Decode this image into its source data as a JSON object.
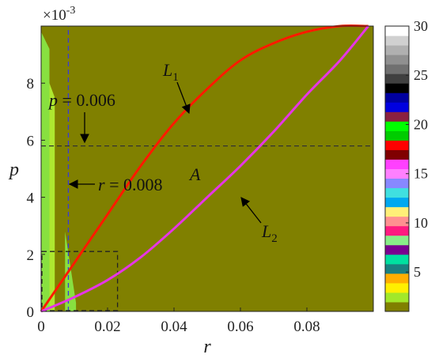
{
  "chart_data": {
    "type": "contour",
    "xlabel": "r",
    "ylabel": "p",
    "xlim": [
      0,
      0.1
    ],
    "ylim": [
      0,
      0.01
    ],
    "y_multiplier": "×10",
    "y_multiplier_exp": "-3",
    "x_ticks": [
      "0",
      "0.02",
      "0.04",
      "0.06",
      "0.08"
    ],
    "x_tick_values": [
      0,
      0.02,
      0.04,
      0.06,
      0.08
    ],
    "y_ticks": [
      "0",
      "2",
      "4",
      "6",
      "8"
    ],
    "y_tick_values": [
      0,
      0.002,
      0.004,
      0.006,
      0.008
    ],
    "background_color": "#808000",
    "series": [
      {
        "name": "L1",
        "color": "#ff1a00",
        "x": [
          0,
          0.01,
          0.02,
          0.03,
          0.04,
          0.05,
          0.06,
          0.07,
          0.08,
          0.09,
          0.0985
        ],
        "y": [
          0,
          0.0017,
          0.0034,
          0.0051,
          0.0066,
          0.0078,
          0.0088,
          0.0094,
          0.0098,
          0.01,
          0.01
        ]
      },
      {
        "name": "L2",
        "color": "#e635e6",
        "x": [
          0,
          0.01,
          0.02,
          0.03,
          0.04,
          0.05,
          0.06,
          0.07,
          0.08,
          0.09,
          0.0985
        ],
        "y": [
          0,
          0.0005,
          0.0011,
          0.0019,
          0.0029,
          0.004,
          0.0051,
          0.0063,
          0.0076,
          0.0088,
          0.01
        ]
      }
    ],
    "reference_lines": [
      {
        "orientation": "horizontal",
        "value": 0.0058,
        "color": "#333333",
        "style": "dashed"
      },
      {
        "orientation": "vertical",
        "value": 0.0082,
        "color": "#3a3ad8",
        "style": "dashed"
      }
    ],
    "inset_box": {
      "x": [
        0,
        0.023
      ],
      "y": [
        0,
        0.0021
      ]
    },
    "green_regions": [
      {
        "color": "#88e040",
        "x": [
          0.0,
          0.0025
        ],
        "y_top": [
          0.0098,
          0.0092
        ]
      },
      {
        "color": "#aee830",
        "x": [
          0.0025,
          0.0041
        ],
        "y_top": [
          0.008,
          0.0075
        ]
      },
      {
        "color": "#88e040",
        "x": [
          0.0072,
          0.0105
        ],
        "y_top": [
          0.0028,
          0.0003
        ]
      }
    ],
    "annotations": [
      {
        "id": "L1",
        "main": "L",
        "sub": "1",
        "arrow_to": [
          0.036,
          0.007
        ],
        "text_at": [
          0.04,
          0.0086
        ]
      },
      {
        "id": "L2",
        "main": "L",
        "sub": "2",
        "arrow_to": [
          0.062,
          0.0043
        ],
        "text_at": [
          0.07,
          0.0028
        ]
      },
      {
        "id": "p",
        "var": "p",
        "rest": " = 0.006",
        "arrow_to": [
          0.013,
          0.0059
        ]
      },
      {
        "id": "r",
        "var": "r",
        "rest": " = 0.008",
        "arrow_to": [
          0.0085,
          0.0045
        ]
      },
      {
        "id": "A",
        "var": "A",
        "text_at": [
          0.05,
          0.0046
        ]
      }
    ],
    "colorbar": {
      "ticks": [
        "5",
        "10",
        "15",
        "20",
        "25",
        "30"
      ],
      "tick_values": [
        5,
        10,
        15,
        20,
        25,
        30
      ],
      "range": [
        1,
        30
      ],
      "colors": [
        "#808000",
        "#a2e82a",
        "#ffef00",
        "#ffae00",
        "#1a8080",
        "#00e0a0",
        "#7a0090",
        "#88ee88",
        "#ff1a80",
        "#ff9090",
        "#ffef78",
        "#00a8f0",
        "#40e0e0",
        "#8888ff",
        "#ff80ff",
        "#ff40ff",
        "#800000",
        "#ff0000",
        "#00cc00",
        "#00ff00",
        "#8a2040",
        "#0000e0",
        "#0000a0",
        "#000000",
        "#404040",
        "#707070",
        "#909090",
        "#b0b0b0",
        "#d0d0d0",
        "#ffffff"
      ]
    }
  }
}
